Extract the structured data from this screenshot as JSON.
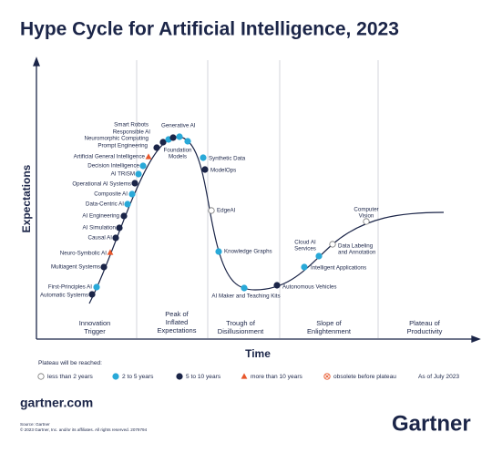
{
  "header": {
    "title": "Hype Cycle for Artificial Intelligence, 2023"
  },
  "axes": {
    "y": "Expectations",
    "x": "Time"
  },
  "phases": [
    [
      "Innovation",
      "Trigger"
    ],
    [
      "Peak of",
      "Inflated",
      "Expectations"
    ],
    [
      "Trough of",
      "Disillusionment"
    ],
    [
      "Slope of",
      "Enlightenment"
    ],
    [
      "Plateau of",
      "Productivity"
    ]
  ],
  "nodes": [
    {
      "label": "Automatic Systems",
      "marker": "dark"
    },
    {
      "label": "First-Principles AI",
      "marker": "light"
    },
    {
      "label": "Multiagent Systems",
      "marker": "dark"
    },
    {
      "label": "Neuro-Symbolic AI",
      "marker": "triangle"
    },
    {
      "label": "Causal AI",
      "marker": "dark"
    },
    {
      "label": "AI Simulation",
      "marker": "dark"
    },
    {
      "label": "AI Engineering",
      "marker": "dark"
    },
    {
      "label": "Data-Centric AI",
      "marker": "light"
    },
    {
      "label": "Composite AI",
      "marker": "light"
    },
    {
      "label": "Operational AI Systems",
      "marker": "dark"
    },
    {
      "label": "AI TRiSM",
      "marker": "light"
    },
    {
      "label": "Decision Intelligence",
      "marker": "light"
    },
    {
      "label": "Artificial General Intelligence",
      "marker": "triangle"
    },
    {
      "label": "Prompt Engineering",
      "marker": "dark"
    },
    {
      "label": "Neuromorphic Computing",
      "marker": "dark"
    },
    {
      "label": "Responsible AI",
      "marker": "light"
    },
    {
      "label": "Smart Robots",
      "marker": "dark"
    },
    {
      "label": "Generative AI",
      "marker": "light"
    },
    {
      "label": [
        "Foundation",
        "Models"
      ],
      "marker": "light"
    },
    {
      "label": "Synthetic Data",
      "marker": "light"
    },
    {
      "label": "ModelOps",
      "marker": "dark"
    },
    {
      "label": "EdgeAI",
      "marker": "hollow"
    },
    {
      "label": "Knowledge Graphs",
      "marker": "light"
    },
    {
      "label": "AI Maker and Teaching Kits",
      "marker": "light"
    },
    {
      "label": "Autonomous Vehicles",
      "marker": "dark"
    },
    {
      "label": "Intelligent Applications",
      "marker": "light"
    },
    {
      "label": [
        "Cloud AI",
        "Services"
      ],
      "marker": "light"
    },
    {
      "label": [
        "Data Labeling",
        "and Annotation"
      ],
      "marker": "hollow"
    },
    {
      "label": [
        "Computer",
        "Vision"
      ],
      "marker": "hollow"
    }
  ],
  "legend": {
    "title": "Plateau will be reached:",
    "items": [
      {
        "label": "less than 2 years",
        "marker": "hollow"
      },
      {
        "label": "2 to 5 years",
        "marker": "light"
      },
      {
        "label": "5 to 10 years",
        "marker": "dark"
      },
      {
        "label": "more than 10 years",
        "marker": "triangle"
      },
      {
        "label": "obsolete before plateau",
        "marker": "obsolete"
      }
    ],
    "note": "As of July 2023"
  },
  "footer": {
    "site": "gartner.com",
    "source": "Source: Gartner",
    "copyright": "© 2023 Gartner, Inc. and/or its affiliates. All rights reserved. 2079794",
    "logo": "Gartner"
  }
}
